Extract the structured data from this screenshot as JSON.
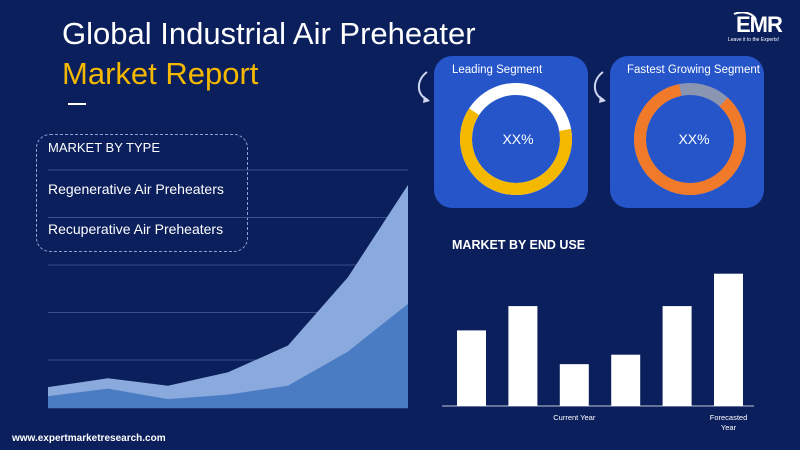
{
  "header": {
    "title_line1": "Global Industrial Air Preheater",
    "title_line2": "Market Report"
  },
  "logo": {
    "text": "EMR",
    "tagline": "Leave it to the Experts!"
  },
  "market_by_type": {
    "heading": "MARKET  BY TYPE",
    "items": [
      "Regenerative Air Preheaters",
      "Recuperative Air Preheaters"
    ]
  },
  "segments": {
    "leading": {
      "title": "Leading Segment",
      "value": "XX%",
      "share": 0.62
    },
    "fastest": {
      "title": "Fastest Growing Segment",
      "value": "XX%",
      "share": 0.85
    }
  },
  "end_use": {
    "title": "MARKET BY END USE"
  },
  "footer": {
    "url": "www.expertmarketresearch.com"
  },
  "colors": {
    "background": "#0b1f5c",
    "card": "#2555c9",
    "accent": "#f5b800",
    "orange": "#f07a2a",
    "area_light": "#8aa9dc",
    "area_dark": "#4a7cc4"
  },
  "chart_data": [
    {
      "type": "area",
      "x": [
        0,
        1,
        2,
        3,
        4,
        5,
        6
      ],
      "series": [
        {
          "values": [
            14,
            20,
            15,
            24,
            42,
            88,
            150
          ]
        },
        {
          "values": [
            8,
            13,
            6,
            9,
            15,
            38,
            70
          ]
        }
      ],
      "ylim": [
        0,
        160
      ],
      "grid": true
    },
    {
      "type": "bar",
      "categories": [
        "",
        "",
        "Current Year",
        "",
        "",
        "Forecasted Year"
      ],
      "values": [
        56,
        74,
        31,
        38,
        74,
        98
      ],
      "ylim": [
        0,
        100
      ]
    }
  ]
}
